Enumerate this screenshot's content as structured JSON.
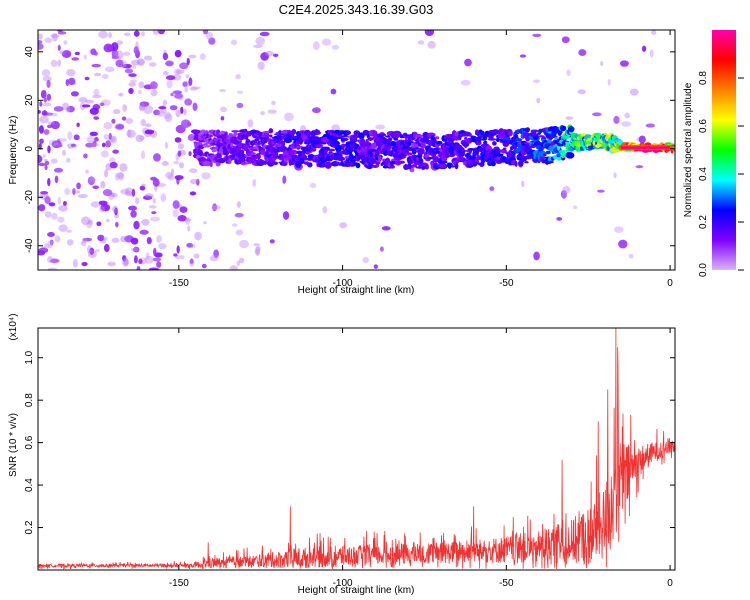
{
  "title": "C2E4.2025.343.16.39.G03",
  "chart_data": [
    {
      "type": "heatmap",
      "xlabel": "Height of straight line (km)",
      "ylabel": "Frequency (Hz)",
      "xlim": [
        -193,
        1.5
      ],
      "ylim": [
        -50,
        49
      ],
      "xticks": [
        -150,
        -100,
        -50,
        0
      ],
      "yticks": [
        -40,
        -20,
        0,
        20,
        40
      ],
      "colorbar": {
        "label": "Normalized spectral amplitude",
        "range": [
          0,
          1
        ],
        "ticks": [
          0.0,
          0.2,
          0.4,
          0.6,
          0.8
        ],
        "colors": [
          "#d9b3ff",
          "#8000ff",
          "#0000ff",
          "#00ffff",
          "#00ff00",
          "#ffff00",
          "#ff8000",
          "#ff0000",
          "#ff00aa"
        ]
      },
      "signal_track": [
        {
          "x": -145,
          "y": 0.5,
          "amp": 0.12
        },
        {
          "x": -120,
          "y": 0.5,
          "amp": 0.18
        },
        {
          "x": -100,
          "y": 0,
          "amp": 0.2
        },
        {
          "x": -75,
          "y": -1,
          "amp": 0.18
        },
        {
          "x": -50,
          "y": 0.5,
          "amp": 0.22
        },
        {
          "x": -35,
          "y": 1.5,
          "amp": 0.28
        },
        {
          "x": -28,
          "y": 3,
          "amp": 0.5
        },
        {
          "x": -20,
          "y": 3.5,
          "amp": 0.55
        },
        {
          "x": -15,
          "y": 0.5,
          "amp": 0.6
        },
        {
          "x": -10,
          "y": 0.5,
          "amp": 0.92
        },
        {
          "x": -5,
          "y": 0.5,
          "amp": 0.98
        },
        {
          "x": 0,
          "y": 0.5,
          "amp": 0.95
        }
      ],
      "noise_cutoffs": {
        "dense_until": -145,
        "sparse_until": -120
      }
    },
    {
      "type": "line",
      "xlabel": "Height of straight line (km)",
      "ylabel": "SNR (10 * v/v)",
      "y_multiplier": "(x10⁴)",
      "xlim": [
        -193,
        1.5
      ],
      "ylim": [
        0,
        1.14
      ],
      "xticks": [
        -150,
        -100,
        -50,
        0
      ],
      "yticks": [
        0.2,
        0.4,
        0.6,
        0.8,
        1.0
      ],
      "color": "#ee3333",
      "series": [
        {
          "envelope": {
            "x": [
              -193,
              -160,
              -146,
              -140,
              -125,
              -115,
              -100,
              -80,
              -60,
              -50,
              -40,
              -30,
              -25,
              -20,
              -18,
              -16,
              -15,
              -12,
              -10,
              -5,
              0
            ],
            "base": [
              0.02,
              0.02,
              0.02,
              0.03,
              0.04,
              0.05,
              0.06,
              0.07,
              0.08,
              0.09,
              0.1,
              0.12,
              0.15,
              0.2,
              0.3,
              0.4,
              0.4,
              0.45,
              0.5,
              0.55,
              0.58
            ],
            "spread": [
              0.015,
              0.015,
              0.02,
              0.05,
              0.06,
              0.1,
              0.1,
              0.1,
              0.11,
              0.13,
              0.16,
              0.22,
              0.28,
              0.35,
              0.45,
              0.5,
              0.4,
              0.25,
              0.15,
              0.1,
              0.08
            ]
          },
          "peaks": [
            {
              "x": -141,
              "y": 0.13
            },
            {
              "x": -116,
              "y": 0.3
            },
            {
              "x": -60,
              "y": 0.3
            },
            {
              "x": -33,
              "y": 0.52
            },
            {
              "x": -22,
              "y": 0.7
            },
            {
              "x": -19,
              "y": 0.85
            },
            {
              "x": -16.5,
              "y": 1.14
            },
            {
              "x": -16,
              "y": 1.05
            },
            {
              "x": -12,
              "y": 0.73
            }
          ]
        }
      ]
    }
  ]
}
